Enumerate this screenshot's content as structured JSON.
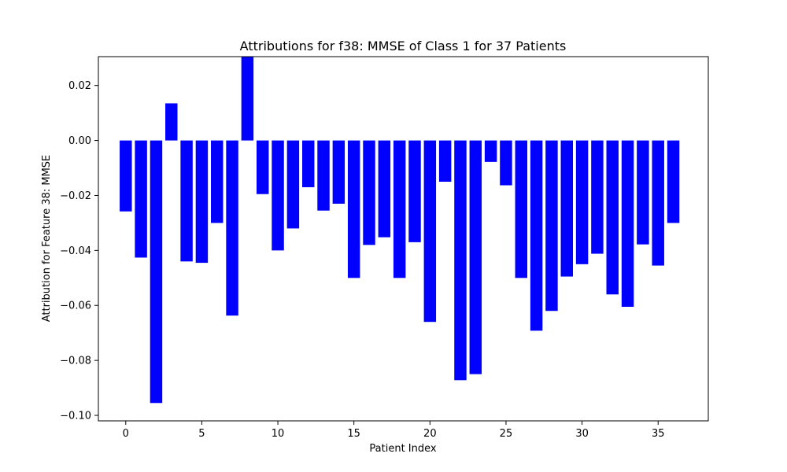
{
  "chart_data": {
    "type": "bar",
    "title": "Attributions for f38: MMSE of Class 1 for 37 Patients",
    "xlabel": "Patient Index",
    "ylabel": "Attribution for Feature 38: MMSE",
    "x": [
      0,
      1,
      2,
      3,
      4,
      5,
      6,
      7,
      8,
      9,
      10,
      11,
      12,
      13,
      14,
      15,
      16,
      17,
      18,
      19,
      20,
      21,
      22,
      23,
      24,
      25,
      26,
      27,
      28,
      29,
      30,
      31,
      32,
      33,
      34,
      35,
      36
    ],
    "values": [
      -0.0258,
      -0.0426,
      -0.0955,
      0.0135,
      -0.044,
      -0.0445,
      -0.03,
      -0.0637,
      0.0305,
      -0.0195,
      -0.04,
      -0.032,
      -0.017,
      -0.0255,
      -0.023,
      -0.05,
      -0.038,
      -0.0352,
      -0.05,
      -0.037,
      -0.066,
      -0.015,
      -0.0872,
      -0.085,
      -0.0078,
      -0.0163,
      -0.05,
      -0.0692,
      -0.062,
      -0.0495,
      -0.045,
      -0.0412,
      -0.056,
      -0.0605,
      -0.0378,
      -0.0455,
      -0.03
    ],
    "bar_color": "#0000ff",
    "xlim": [
      -1.8,
      38.3
    ],
    "ylim": [
      -0.102,
      0.0305
    ],
    "xticks": [
      0,
      5,
      10,
      15,
      20,
      25,
      30,
      35
    ],
    "xtick_labels": [
      "0",
      "5",
      "10",
      "15",
      "20",
      "25",
      "30",
      "35"
    ],
    "yticks": [
      -0.1,
      -0.08,
      -0.06,
      -0.04,
      -0.02,
      0.0,
      0.02
    ],
    "ytick_labels": [
      "−0.10",
      "−0.08",
      "−0.06",
      "−0.04",
      "−0.02",
      "0.00",
      "0.02"
    ],
    "grid": false,
    "legend": "none"
  }
}
